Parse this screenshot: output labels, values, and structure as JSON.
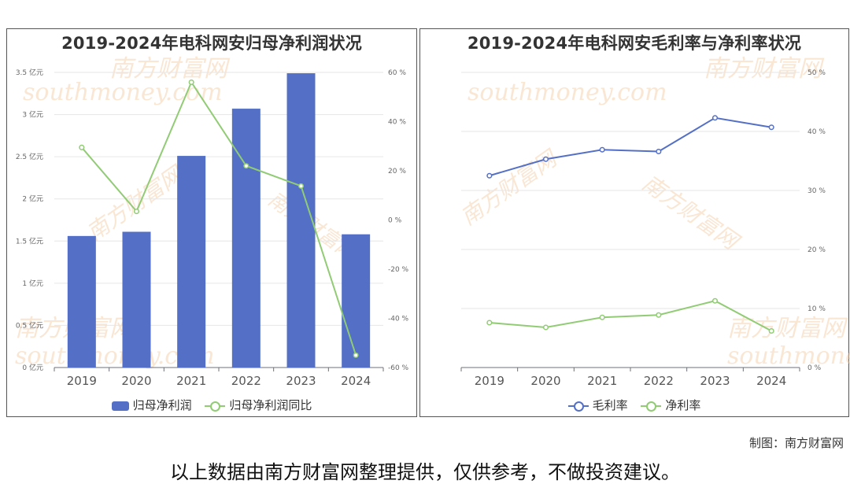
{
  "chart_data": [
    {
      "type": "bar",
      "title": "2019-2024年电科网安归母净利润状况",
      "categories": [
        "2019",
        "2020",
        "2021",
        "2022",
        "2023",
        "2024"
      ],
      "series": [
        {
          "name": "归母净利润",
          "kind": "bar",
          "axis": "left",
          "values": [
            1.56,
            1.61,
            2.51,
            3.07,
            3.49,
            1.58
          ],
          "color": "#5470c6"
        },
        {
          "name": "归母净利润同比",
          "kind": "line",
          "axis": "right",
          "values": [
            29.5,
            3.5,
            56.0,
            22.0,
            13.8,
            -55.0
          ],
          "color": "#91cc75"
        }
      ],
      "y_left": {
        "ticks": [
          "0 亿元",
          "0.5 亿元",
          "1 亿元",
          "1.5 亿元",
          "2 亿元",
          "2.5 亿元",
          "3 亿元",
          "3.5 亿元"
        ],
        "range": [
          0,
          3.5
        ]
      },
      "y_right": {
        "ticks": [
          "-60 %",
          "-40 %",
          "-20 %",
          "0 %",
          "20 %",
          "40 %",
          "60 %"
        ],
        "range": [
          -60,
          60
        ]
      },
      "grid": true,
      "legend_position": "bottom"
    },
    {
      "type": "line",
      "title": "2019-2024年电科网安毛利率与净利率状况",
      "categories": [
        "2019",
        "2020",
        "2021",
        "2022",
        "2023",
        "2024"
      ],
      "series": [
        {
          "name": "毛利率",
          "values": [
            32.5,
            35.3,
            36.9,
            36.6,
            42.3,
            40.7
          ],
          "color": "#5470c6"
        },
        {
          "name": "净利率",
          "values": [
            7.6,
            6.8,
            8.5,
            8.9,
            11.3,
            6.2
          ],
          "color": "#91cc75"
        }
      ],
      "y_right": {
        "ticks": [
          "0 %",
          "10 %",
          "20 %",
          "30 %",
          "40 %",
          "50 %"
        ],
        "range": [
          0,
          50
        ]
      },
      "grid": true,
      "legend_position": "bottom"
    }
  ],
  "watermark": {
    "cn": "南方财富网",
    "en": "southmoney.com",
    "color": "#f3c9a0"
  },
  "credit": "制图：南方财富网",
  "disclaimer": "以上数据由南方财富网整理提供，仅供参考，不做投资建议。"
}
